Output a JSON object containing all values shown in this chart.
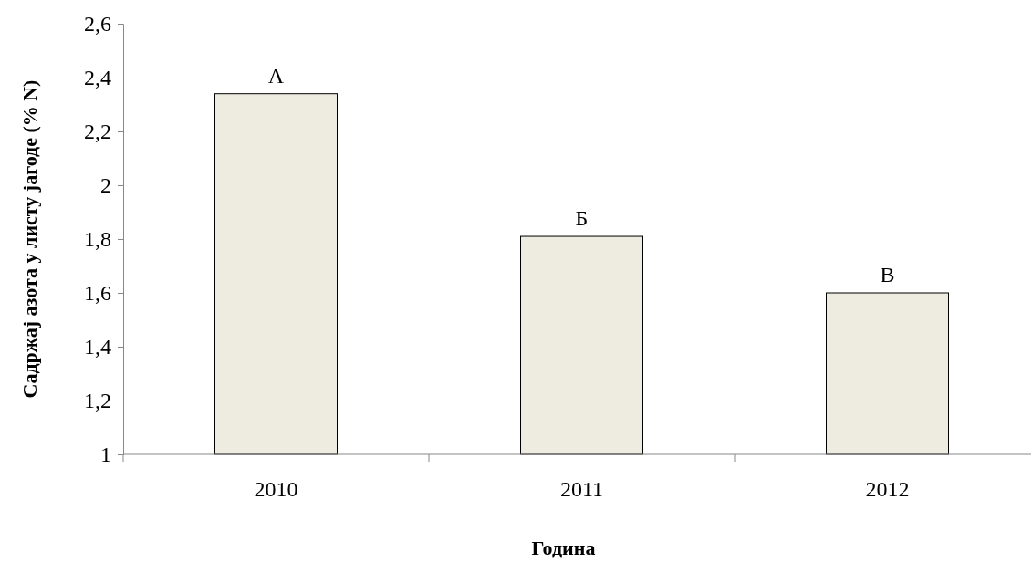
{
  "chart_data": {
    "type": "bar",
    "xlabel": "Година",
    "ylabel": "Садржај азота у листу јагоде (% N)",
    "categories": [
      "2010",
      "2011",
      "2012"
    ],
    "values": [
      2.34,
      1.81,
      1.6
    ],
    "color": "#eeebe0",
    "ylim": [
      1,
      2.6
    ],
    "yticks": [
      1,
      {
        "value": 1.2,
        "label": "1,2"
      },
      {
        "value": 1.4,
        "label": "1,4"
      },
      {
        "value": 1.6,
        "label": "1,6"
      },
      {
        "value": 1.8,
        "label": "1,8"
      },
      2,
      {
        "value": 2.2,
        "label": "2,2"
      },
      {
        "value": 2.4,
        "label": "2,4"
      },
      {
        "value": 2.6,
        "label": "2,6"
      }
    ],
    "grid": false,
    "annotations": [
      {
        "text": "А",
        "x": "2010",
        "y": 2.34
      },
      {
        "text": "Б",
        "x": "2011",
        "y": 1.81
      },
      {
        "text": "В",
        "x": "2012",
        "y": 1.6
      }
    ]
  }
}
